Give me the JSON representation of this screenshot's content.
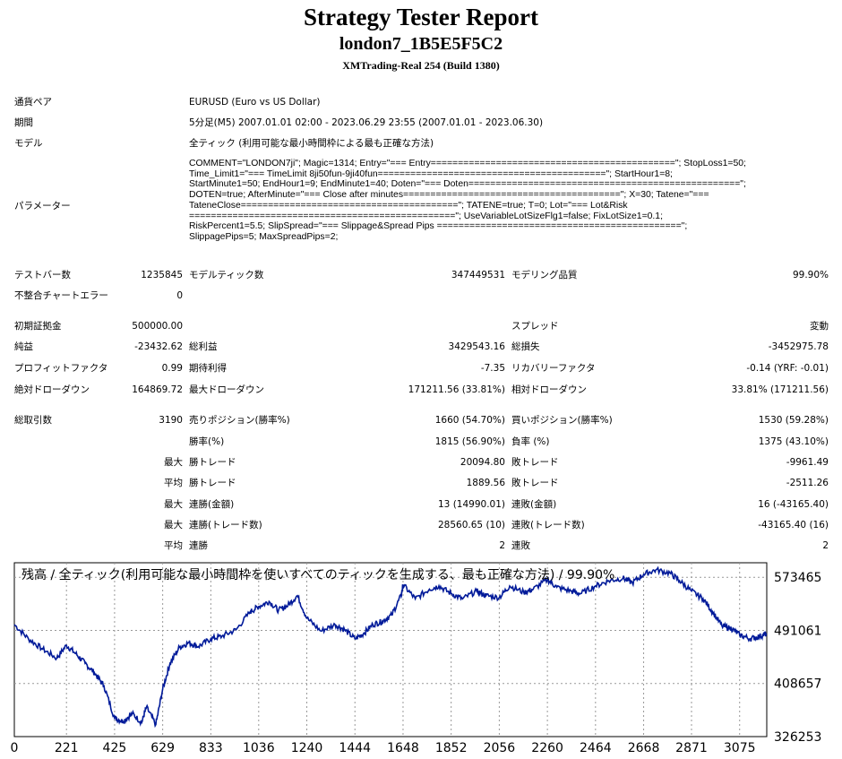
{
  "report": {
    "title": "Strategy Tester Report",
    "expert": "london7_1B5E5F5C2",
    "server": "XMTrading-Real 254 (Build 1380)"
  },
  "info": {
    "symbol_label": "通貨ペア",
    "symbol_value": "EURUSD (Euro vs US Dollar)",
    "period_label": "期間",
    "period_value": "5分足(M5) 2007.01.01 02:00 - 2023.06.29 23:55 (2007.01.01 - 2023.06.30)",
    "model_label": "モデル",
    "model_value": "全ティック (利用可能な最小時間枠による最も正確な方法)",
    "params_label": "パラメーター",
    "params_lines": [
      "COMMENT=\"LONDON7ji\"; Magic=1314; Entry=\"=== Entry=============================================\"; StopLoss1=50;",
      "Time_Limit1=\"=== TimeLimit 8ji50fun-9ji40fun==========================================\"; StartHour1=8;",
      "StartMinute1=50; EndHour1=9; EndMinute1=40; Doten=\"=== Doten==================================================\";",
      "DOTEN=true; AfterMinute=\"=== Close after minutes========================================\"; X=30; Tatene=\"===",
      "TateneClose========================================\"; TATENE=true; T=0; Lot=\"=== Lot&Risk",
      "=================================================\"; UseVariableLotSizeFlg1=false; FixLotSize1=0.1;",
      "RiskPercent1=5.5; SlipSpread=\"=== Slippage&Spread Pips =============================================\";",
      "SlippagePips=5; MaxSpreadPips=2;"
    ]
  },
  "stats": {
    "bars_label": "テストバー数",
    "bars_value": "1235845",
    "ticks_label": "モデルティック数",
    "ticks_value": "347449531",
    "quality_label": "モデリング品質",
    "quality_value": "99.90%",
    "mismatch_label": "不整合チャートエラー",
    "mismatch_value": "0",
    "deposit_label": "初期証拠金",
    "deposit_value": "500000.00",
    "spread_label": "スプレッド",
    "spread_value": "変動",
    "net_label": "純益",
    "net_value": "-23432.62",
    "gross_profit_label": "総利益",
    "gross_profit_value": "3429543.16",
    "gross_loss_label": "総損失",
    "gross_loss_value": "-3452975.78",
    "pf_label": "プロフィットファクタ",
    "pf_value": "0.99",
    "expected_label": "期待利得",
    "expected_value": "-7.35",
    "recovery_label": "リカバリーファクタ",
    "recovery_value": "-0.14 (YRF: -0.01)",
    "abs_dd_label": "絶対ドローダウン",
    "abs_dd_value": "164869.72",
    "max_dd_label": "最大ドローダウン",
    "max_dd_value": "171211.56 (33.81%)",
    "rel_dd_label": "相対ドローダウン",
    "rel_dd_value": "33.81% (171211.56)",
    "trades_label": "総取引数",
    "trades_value": "3190",
    "short_label": "売りポジション(勝率%)",
    "short_value": "1660 (54.70%)",
    "long_label": "買いポジション(勝率%)",
    "long_value": "1530 (59.28%)",
    "winrate_label": "勝率(%)",
    "winrate_value": "1815 (56.90%)",
    "lossrate_label": "負率 (%)",
    "lossrate_value": "1375 (43.10%)",
    "max_word": "最大",
    "avg_word": "平均",
    "largest_win_label": "勝トレード",
    "largest_win_value": "20094.80",
    "largest_loss_label": "敗トレード",
    "largest_loss_value": "-9961.49",
    "avg_win_label": "勝トレード",
    "avg_win_value": "1889.56",
    "avg_loss_label": "敗トレード",
    "avg_loss_value": "-2511.26",
    "max_cons_win_label": "連勝(金額)",
    "max_cons_win_value": "13 (14990.01)",
    "max_cons_loss_label": "連敗(金額)",
    "max_cons_loss_value": "16 (-43165.40)",
    "max_cons_profit_label": "連勝(トレード数)",
    "max_cons_profit_value": "28560.65 (10)",
    "max_cons_lossamt_label": "連敗(トレード数)",
    "max_cons_lossamt_value": "-43165.40 (16)",
    "avg_cons_win_label": "連勝",
    "avg_cons_win_value": "2",
    "avg_cons_loss_label": "連敗",
    "avg_cons_loss_value": "2"
  },
  "chart_data": {
    "type": "line",
    "title": "残高 / 全ティック(利用可能な最小時間枠を使いすべてのティックを生成する、最も正確な方法) / 99.90%",
    "x_ticks": [
      "0",
      "221",
      "425",
      "629",
      "833",
      "1036",
      "1240",
      "1444",
      "1648",
      "1852",
      "2056",
      "2260",
      "2464",
      "2668",
      "2871",
      "3075"
    ],
    "y_ticks": [
      "573465",
      "491061",
      "408657",
      "326253"
    ],
    "xlim": [
      0,
      3190
    ],
    "ylim": [
      326253,
      596000
    ],
    "grid": true,
    "line_color": "#001a99",
    "series": [
      {
        "x": [
          0,
          60,
          120,
          180,
          221,
          260,
          300,
          340,
          380,
          425,
          460,
          500,
          540,
          560,
          600,
          629,
          660,
          700,
          740,
          780,
          833,
          880,
          940,
          1000,
          1036,
          1080,
          1120,
          1160,
          1200,
          1240,
          1300,
          1360,
          1400,
          1444,
          1480,
          1520,
          1560,
          1600,
          1640,
          1648,
          1700,
          1760,
          1800,
          1852,
          1900,
          1960,
          2000,
          2056,
          2100,
          2160,
          2200,
          2260,
          2300,
          2360,
          2400,
          2464,
          2520,
          2580,
          2620,
          2668,
          2720,
          2780,
          2820,
          2871,
          2920,
          2960,
          3000,
          3040,
          3075,
          3120,
          3160,
          3190
        ],
        "y": [
          500000,
          478000,
          462000,
          448000,
          468000,
          455000,
          440000,
          425000,
          405000,
          355000,
          350000,
          362000,
          348000,
          372000,
          345000,
          400000,
          440000,
          465000,
          472000,
          466000,
          478000,
          482000,
          492000,
          520000,
          528000,
          536000,
          522000,
          530000,
          545000,
          510000,
          490000,
          500000,
          492000,
          478000,
          486000,
          500000,
          505000,
          515000,
          545000,
          562000,
          540000,
          555000,
          560000,
          548000,
          540000,
          552000,
          545000,
          542000,
          560000,
          550000,
          555000,
          570000,
          558000,
          552000,
          548000,
          560000,
          568000,
          572000,
          565000,
          578000,
          585000,
          580000,
          568000,
          552000,
          540000,
          520000,
          498000,
          494000,
          484000,
          478000,
          482000,
          486000
        ]
      }
    ]
  }
}
